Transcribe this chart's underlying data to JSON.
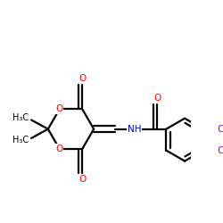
{
  "bg": "#ffffff",
  "bc": "#000000",
  "Oc": "#ff0000",
  "Nc": "#0000cd",
  "Clc": "#9400d3",
  "lw": 1.6,
  "fs": 7.5,
  "dbo": 0.01,
  "figsize": [
    2.5,
    2.5
  ],
  "dpi": 100,
  "xlim": [
    0,
    250
  ],
  "ylim": [
    0,
    250
  ]
}
